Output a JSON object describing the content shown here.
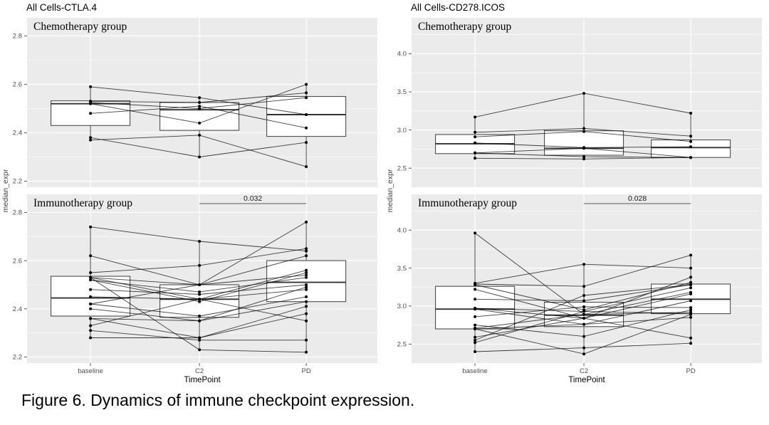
{
  "figure_caption": "Figure 6. Dynamics of immune checkpoint expression.",
  "colors": {
    "panel_background": "#EBEBEB",
    "gridline": "#ffffff",
    "box_stroke": "#4d4d4d",
    "box_fill": "#ffffff",
    "point": "#000000",
    "subject_line": "#000000",
    "tick_label": "#4d4d4d",
    "bracket": "#7a7a7a"
  },
  "chart_data": [
    {
      "type": "box+paired-lines",
      "title": "All Cells-CTLA.4",
      "xlabel": "TimePoint",
      "ylabel": "median_expr",
      "categories": [
        "baseline",
        "C2",
        "PD"
      ],
      "ylim": [
        2.175,
        2.875
      ],
      "yticks": [
        {
          "v": 2.2,
          "label": "2.2"
        },
        {
          "v": 2.4,
          "label": "2.4"
        },
        {
          "v": 2.6,
          "label": "2.6"
        },
        {
          "v": 2.8,
          "label": "2.8"
        }
      ],
      "facets": [
        {
          "label": "Chemotherapy group",
          "p_value": null,
          "p_span": null,
          "boxes": [
            {
              "lo": 2.37,
              "q1": 2.43,
              "med": 2.52,
              "q3": 2.532,
              "hi": 2.59
            },
            {
              "lo": 2.3,
              "q1": 2.41,
              "med": 2.495,
              "q3": 2.525,
              "hi": 2.545
            },
            {
              "lo": 2.26,
              "q1": 2.385,
              "med": 2.475,
              "q3": 2.55,
              "hi": 2.6
            }
          ],
          "subjects": [
            [
              2.59,
              2.545,
              2.475
            ],
            [
              2.53,
              2.525,
              2.565
            ],
            [
              2.525,
              2.5,
              2.545
            ],
            [
              2.52,
              2.44,
              2.6
            ],
            [
              2.48,
              2.51,
              2.42
            ],
            [
              2.38,
              2.3,
              2.36
            ],
            [
              2.37,
              2.39,
              2.26
            ]
          ]
        },
        {
          "label": "Immunotherapy group",
          "p_value": "0.032",
          "p_span": [
            1,
            2
          ],
          "boxes": [
            {
              "lo": 2.28,
              "q1": 2.37,
              "med": 2.445,
              "q3": 2.535,
              "hi": 2.74
            },
            {
              "lo": 2.23,
              "q1": 2.365,
              "med": 2.44,
              "q3": 2.5,
              "hi": 2.68
            },
            {
              "lo": 2.22,
              "q1": 2.43,
              "med": 2.51,
              "q3": 2.6,
              "hi": 2.76
            }
          ],
          "subjects": [
            [
              2.74,
              2.68,
              2.64
            ],
            [
              2.62,
              2.5,
              2.76
            ],
            [
              2.55,
              2.58,
              2.65
            ],
            [
              2.53,
              2.5,
              2.62
            ],
            [
              2.53,
              2.44,
              2.56
            ],
            [
              2.52,
              2.47,
              2.53
            ],
            [
              2.52,
              2.43,
              2.55
            ],
            [
              2.48,
              2.46,
              2.5
            ],
            [
              2.45,
              2.44,
              2.48
            ],
            [
              2.42,
              2.37,
              2.45
            ],
            [
              2.4,
              2.35,
              2.43
            ],
            [
              2.36,
              2.28,
              2.41
            ],
            [
              2.33,
              2.44,
              2.35
            ],
            [
              2.31,
              2.27,
              2.27
            ],
            [
              2.28,
              2.28,
              2.38
            ],
            [
              2.53,
              2.23,
              2.22
            ],
            [
              2.42,
              2.5,
              2.54
            ],
            [
              2.36,
              2.35,
              2.49
            ]
          ]
        }
      ]
    },
    {
      "type": "box+paired-lines",
      "title": "All Cells-CD278.ICOS",
      "xlabel": "TimePoint",
      "ylabel": "median_expr",
      "categories": [
        "baseline",
        "C2",
        "PD"
      ],
      "ylim": [
        2.25,
        4.47
      ],
      "yticks": [
        {
          "v": 2.5,
          "label": "2.5"
        },
        {
          "v": 3.0,
          "label": "3.0"
        },
        {
          "v": 3.5,
          "label": "3.5"
        },
        {
          "v": 4.0,
          "label": "4.0"
        }
      ],
      "facets": [
        {
          "label": "Chemotherapy group",
          "p_value": null,
          "p_span": null,
          "boxes": [
            {
              "lo": 2.63,
              "q1": 2.69,
              "med": 2.82,
              "q3": 2.94,
              "hi": 3.17
            },
            {
              "lo": 2.62,
              "q1": 2.67,
              "med": 2.76,
              "q3": 2.99,
              "hi": 3.48
            },
            {
              "lo": 2.62,
              "q1": 2.64,
              "med": 2.77,
              "q3": 2.87,
              "hi": 3.22
            }
          ],
          "subjects": [
            [
              3.17,
              3.48,
              3.22
            ],
            [
              2.97,
              3.02,
              2.92
            ],
            [
              2.91,
              2.98,
              2.85
            ],
            [
              2.83,
              2.77,
              2.78
            ],
            [
              2.7,
              2.76,
              2.64
            ],
            [
              2.7,
              2.65,
              2.64
            ],
            [
              2.63,
              2.62,
              2.64
            ]
          ]
        },
        {
          "label": "Immunotherapy group",
          "p_value": "0.028",
          "p_span": [
            1,
            2
          ],
          "boxes": [
            {
              "lo": 2.4,
              "q1": 2.7,
              "med": 2.96,
              "q3": 3.26,
              "hi": 3.96
            },
            {
              "lo": 2.35,
              "q1": 2.73,
              "med": 2.88,
              "q3": 3.05,
              "hi": 3.55
            },
            {
              "lo": 2.49,
              "q1": 2.9,
              "med": 3.09,
              "q3": 3.29,
              "hi": 3.67
            }
          ],
          "subjects": [
            [
              3.96,
              2.89,
              3.18
            ],
            [
              3.3,
              3.55,
              3.5
            ],
            [
              3.29,
              3.26,
              3.67
            ],
            [
              3.28,
              2.95,
              3.31
            ],
            [
              3.22,
              2.84,
              3.38
            ],
            [
              3.09,
              3.07,
              3.28
            ],
            [
              2.97,
              2.93,
              3.24
            ],
            [
              2.97,
              2.84,
              3.16
            ],
            [
              2.96,
              2.76,
              3.07
            ],
            [
              2.86,
              2.99,
              2.98
            ],
            [
              2.75,
              2.6,
              2.95
            ],
            [
              2.71,
              2.89,
              2.92
            ],
            [
              2.7,
              2.37,
              2.89
            ],
            [
              2.7,
              2.76,
              2.85
            ],
            [
              2.59,
              2.84,
              2.58
            ],
            [
              2.55,
              3.14,
              3.28
            ],
            [
              2.52,
              2.93,
              2.9
            ],
            [
              2.4,
              2.45,
              2.51
            ]
          ]
        }
      ]
    }
  ]
}
